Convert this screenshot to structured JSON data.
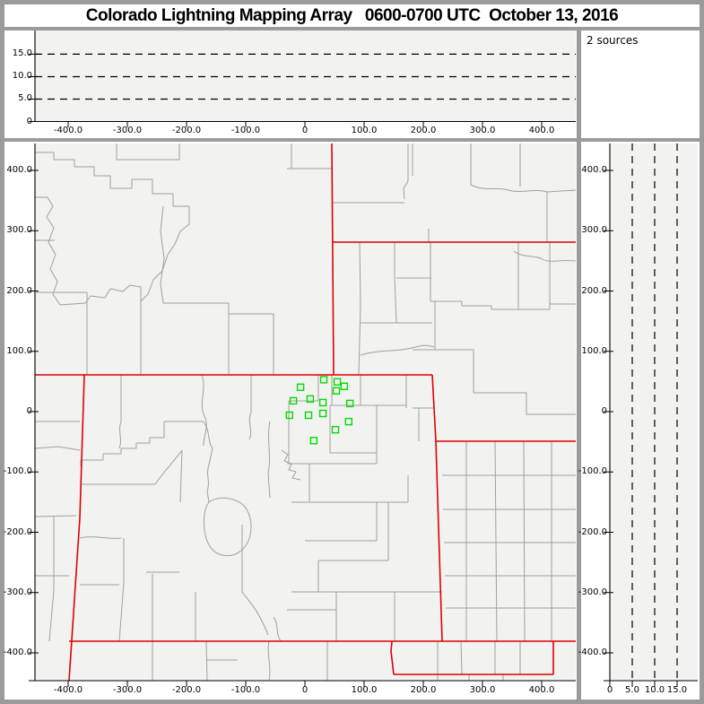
{
  "header": {
    "title": "Colorado Lightning Mapping Array   0600-0700 UTC  October 13, 2016"
  },
  "sources_box": {
    "label": "2 sources"
  },
  "colors": {
    "frame": "#9b9b9b",
    "panel_bg": "#ffffff",
    "plot_bg": "#f2f2f0",
    "county_line": "#a0a0a0",
    "state_line": "#e00000",
    "station_marker": "#00dd00",
    "axis": "#000000"
  },
  "chart_data": [
    {
      "id": "altitude-vs-east-west",
      "type": "scatter",
      "title": "",
      "xlim": [
        -457,
        457
      ],
      "ylim": [
        0,
        20
      ],
      "x_tick_labels": [
        "-400.0",
        "-300.0",
        "-200.0",
        "-100.0",
        "0",
        "100.0",
        "200.0",
        "300.0",
        "400.0"
      ],
      "x_tick_values": [
        -400,
        -300,
        -200,
        -100,
        0,
        100,
        200,
        300,
        400
      ],
      "y_tick_labels": [
        "15.0",
        "10.0",
        "5.0",
        "0"
      ],
      "y_tick_values": [
        15,
        10,
        5,
        0
      ],
      "gridlines_alt_km": [
        5,
        10,
        15
      ],
      "grid_style": "dashed",
      "points": []
    },
    {
      "id": "plan-view-map",
      "type": "scatter",
      "title": "",
      "xlim": [
        -457,
        457
      ],
      "ylim": [
        -446,
        446
      ],
      "x_tick_labels": [
        "-400.0",
        "-300.0",
        "-200.0",
        "-100.0",
        "0",
        "100.0",
        "200.0",
        "300.0",
        "400.0"
      ],
      "x_tick_values": [
        -400,
        -300,
        -200,
        -100,
        0,
        100,
        200,
        300,
        400
      ],
      "y_tick_labels": [
        "400.0",
        "300.0",
        "200.0",
        "100.0",
        "0",
        "-100.0",
        "-200.0",
        "-300.0",
        "-400.0"
      ],
      "y_tick_values": [
        400,
        300,
        200,
        100,
        0,
        -100,
        -200,
        -300,
        -400
      ],
      "map_layers": {
        "county_boundaries_color": "#a0a0a0",
        "state_boundaries_color": "#e00000",
        "states_visible": [
          "Colorado",
          "Wyoming",
          "Utah",
          "New Mexico",
          "Oklahoma",
          "Texas",
          "Kansas",
          "Nebraska",
          "South Dakota"
        ]
      },
      "stations": {
        "marker": "open-square",
        "color": "#00dd00",
        "positions_km": [
          [
            32,
            53
          ],
          [
            54.5,
            49.5
          ],
          [
            66.5,
            42
          ],
          [
            53,
            34.5
          ],
          [
            -7.5,
            40.5
          ],
          [
            -19.5,
            18
          ],
          [
            9,
            21
          ],
          [
            30.5,
            15
          ],
          [
            76,
            13.5
          ],
          [
            -26,
            -6
          ],
          [
            6,
            -6
          ],
          [
            30.5,
            -3
          ],
          [
            74,
            -16.5
          ],
          [
            51.5,
            -30
          ],
          [
            15,
            -48
          ]
        ]
      },
      "points": []
    },
    {
      "id": "altitude-vs-north-south",
      "type": "scatter",
      "title": "",
      "xlim": [
        0,
        19.6
      ],
      "ylim": [
        -446,
        446
      ],
      "x_tick_labels": [
        "0",
        "5.0",
        "10.0",
        "15.0"
      ],
      "x_tick_values": [
        0,
        5,
        10,
        15
      ],
      "y_tick_labels": [
        "400.0",
        "300.0",
        "200.0",
        "100.0",
        "0",
        "-100.0",
        "-200.0",
        "-300.0",
        "-400.0"
      ],
      "y_tick_values": [
        400,
        300,
        200,
        100,
        0,
        -100,
        -200,
        -300,
        -400
      ],
      "gridlines_alt_km": [
        5,
        10,
        15
      ],
      "grid_style": "dashed",
      "points": []
    }
  ]
}
